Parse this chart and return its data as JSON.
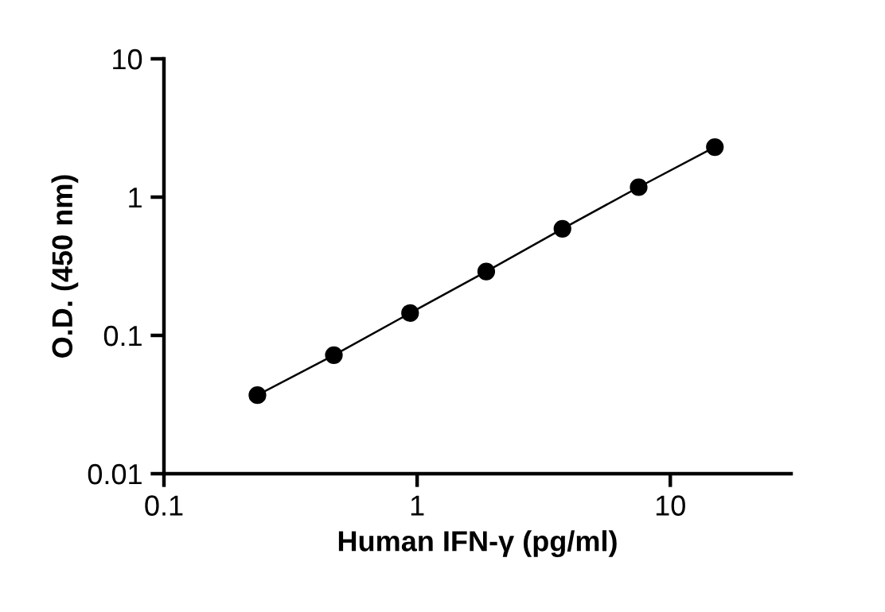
{
  "chart_data": {
    "type": "line",
    "xlabel": "Human IFN-γ (pg/ml)",
    "ylabel": "O.D. (450 nm)",
    "x": [
      0.234,
      0.469,
      0.938,
      1.875,
      3.75,
      7.5,
      15
    ],
    "series": [
      {
        "color": "#000000",
        "values": [
          0.037,
          0.072,
          0.145,
          0.29,
          0.59,
          1.18,
          2.3
        ]
      }
    ],
    "log": "xy",
    "xlim": [
      0.1,
      30
    ],
    "ylim": [
      0.01,
      10
    ],
    "xticks": [
      0.1,
      1,
      10
    ],
    "yticks": [
      0.01,
      0.1,
      1,
      10
    ],
    "marker": "circle",
    "line_style": "solid",
    "grid": false,
    "legend": false
  }
}
